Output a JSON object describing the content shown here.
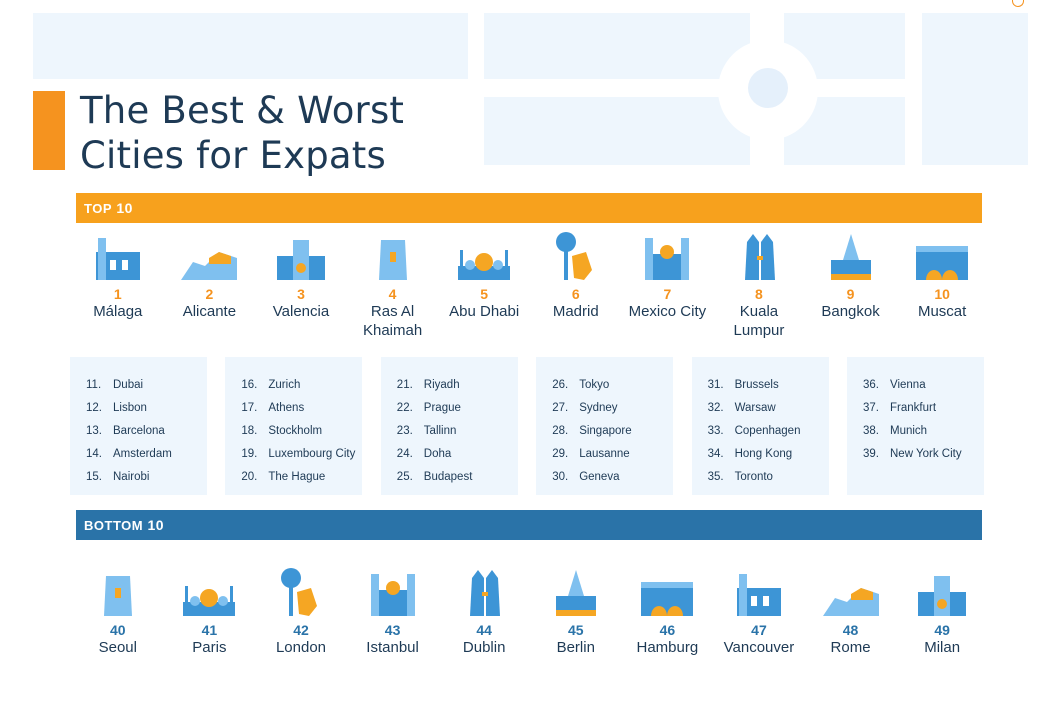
{
  "title": {
    "line1": "The Best & Worst",
    "line2": "Cities for Expats"
  },
  "top_banner": {
    "label": "TOP",
    "count": "10"
  },
  "bottom_banner": {
    "label": "BOTTOM",
    "count": "10"
  },
  "colors": {
    "orange": "#f5931f",
    "blue": "#2a73a8",
    "navy": "#1e3a55",
    "light_blue": "#eef6fd"
  },
  "top10": [
    {
      "rank": "1",
      "name": "Málaga",
      "icon": "cathedral-icon"
    },
    {
      "rank": "2",
      "name": "Alicante",
      "icon": "castle-hill-icon"
    },
    {
      "rank": "3",
      "name": "Valencia",
      "icon": "palace-icon"
    },
    {
      "rank": "4",
      "name": "Ras Al Khaimah",
      "icon": "fort-tower-icon"
    },
    {
      "rank": "5",
      "name": "Abu Dhabi",
      "icon": "mosque-icon"
    },
    {
      "rank": "6",
      "name": "Madrid",
      "icon": "bear-tree-statue-icon"
    },
    {
      "rank": "7",
      "name": "Mexico City",
      "icon": "cathedral-twin-towers-icon"
    },
    {
      "rank": "8",
      "name": "Kuala Lumpur",
      "icon": "petronas-towers-icon"
    },
    {
      "rank": "9",
      "name": "Bangkok",
      "icon": "temple-icon"
    },
    {
      "rank": "10",
      "name": "Muscat",
      "icon": "gate-icon"
    }
  ],
  "middle": [
    [
      {
        "n": "11.",
        "city": "Dubai"
      },
      {
        "n": "12.",
        "city": "Lisbon"
      },
      {
        "n": "13.",
        "city": "Barcelona"
      },
      {
        "n": "14.",
        "city": "Amsterdam"
      },
      {
        "n": "15.",
        "city": "Nairobi"
      }
    ],
    [
      {
        "n": "16.",
        "city": "Zurich"
      },
      {
        "n": "17.",
        "city": "Athens"
      },
      {
        "n": "18.",
        "city": "Stockholm"
      },
      {
        "n": "19.",
        "city": "Luxembourg City"
      },
      {
        "n": "20.",
        "city": "The Hague"
      }
    ],
    [
      {
        "n": "21.",
        "city": "Riyadh"
      },
      {
        "n": "22.",
        "city": "Prague"
      },
      {
        "n": "23.",
        "city": "Tallinn"
      },
      {
        "n": "24.",
        "city": "Doha"
      },
      {
        "n": "25.",
        "city": "Budapest"
      }
    ],
    [
      {
        "n": "26.",
        "city": "Tokyo"
      },
      {
        "n": "27.",
        "city": "Sydney"
      },
      {
        "n": "28.",
        "city": "Singapore"
      },
      {
        "n": "29.",
        "city": "Lausanne"
      },
      {
        "n": "30.",
        "city": "Geneva"
      }
    ],
    [
      {
        "n": "31.",
        "city": "Brussels"
      },
      {
        "n": "32.",
        "city": "Warsaw"
      },
      {
        "n": "33.",
        "city": "Copenhagen"
      },
      {
        "n": "34.",
        "city": "Hong Kong"
      },
      {
        "n": "35.",
        "city": "Toronto"
      }
    ],
    [
      {
        "n": "36.",
        "city": "Vienna"
      },
      {
        "n": "37.",
        "city": "Frankfurt"
      },
      {
        "n": "38.",
        "city": "Munich"
      },
      {
        "n": "39.",
        "city": "New York City"
      }
    ]
  ],
  "bottom10": [
    {
      "rank": "40",
      "name": "Seoul",
      "icon": "pagoda-gate-icon"
    },
    {
      "rank": "41",
      "name": "Paris",
      "icon": "eiffel-tower-icon"
    },
    {
      "rank": "42",
      "name": "London",
      "icon": "tower-bridge-icon"
    },
    {
      "rank": "43",
      "name": "Istanbul",
      "icon": "blue-mosque-icon"
    },
    {
      "rank": "44",
      "name": "Dublin",
      "icon": "church-spire-icon"
    },
    {
      "rank": "45",
      "name": "Berlin",
      "icon": "brandenburg-gate-icon"
    },
    {
      "rank": "46",
      "name": "Hamburg",
      "icon": "town-hall-icon"
    },
    {
      "rank": "47",
      "name": "Vancouver",
      "icon": "geodesic-dome-icon"
    },
    {
      "rank": "48",
      "name": "Rome",
      "icon": "colosseum-icon"
    },
    {
      "rank": "49",
      "name": "Milan",
      "icon": "duomo-icon"
    }
  ]
}
